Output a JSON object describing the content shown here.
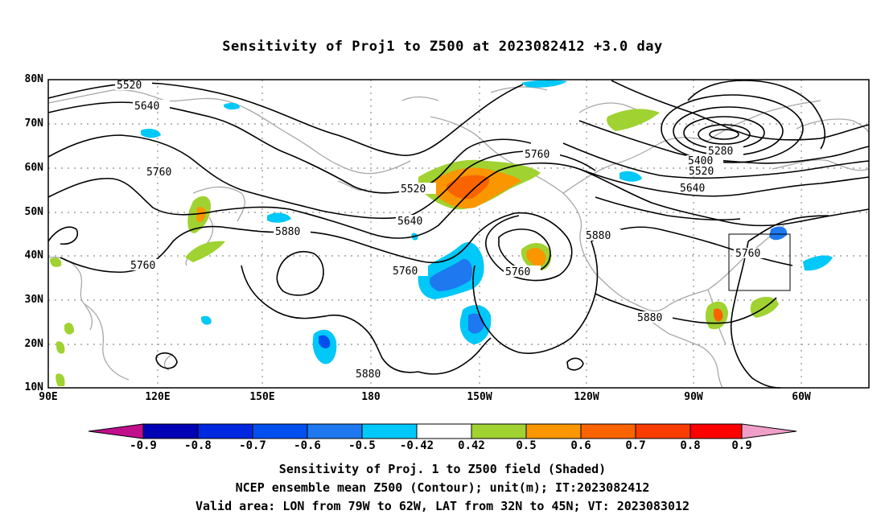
{
  "title": "Sensitivity of Proj1 to Z500 at 2023082412 +3.0 day",
  "lat_labels": [
    "80N",
    "70N",
    "60N",
    "50N",
    "40N",
    "30N",
    "20N",
    "10N"
  ],
  "lon_labels": [
    "90E",
    "120E",
    "150E",
    "180",
    "150W",
    "120W",
    "90W",
    "60W"
  ],
  "contour_labels": [
    "5520",
    "5640",
    "5760",
    "5760",
    "5880",
    "5520",
    "5640",
    "5760",
    "5760",
    "5760",
    "5880",
    "5880",
    "5880",
    "5280",
    "5400",
    "5520",
    "5640",
    "5760"
  ],
  "colorbar": {
    "labels": [
      "-0.9",
      "-0.8",
      "-0.7",
      "-0.6",
      "-0.5",
      "-0.42",
      "0.42",
      "0.5",
      "0.6",
      "0.7",
      "0.8",
      "0.9"
    ],
    "colors": {
      "low_arrow": "#c0108c",
      "band_1": "#0000b4",
      "band_2": "#0028e0",
      "band_3": "#0050f0",
      "band_4": "#1e78f0",
      "band_5": "#00c8f8",
      "neutral": "#ffffff",
      "band_6": "#a0d232",
      "band_7": "#fa9600",
      "band_8": "#fa6400",
      "band_9": "#fa3c00",
      "band_10": "#ff0000",
      "high_arrow": "#f0a0c8"
    }
  },
  "captions": [
    "Sensitivity of Proj. 1 to Z500 field (Shaded)",
    "NCEP ensemble mean Z500 (Contour); unit(m); IT:2023082412",
    "Valid area: LON from 79W to 62W, LAT from 32N to 45N; VT: 2023083012"
  ],
  "valid_area": {
    "lon_from": "79W",
    "lon_to": "62W",
    "lat_from": "32N",
    "lat_to": "45N"
  },
  "colors": {
    "coast": "#a8a8a8",
    "grid": "#a0a0a0",
    "contour": "#000000",
    "sens_pos_low": "#a0d232",
    "sens_pos_mid": "#fa9600",
    "sens_pos_high": "#fa6400",
    "sens_neg_low": "#00c8f8",
    "sens_neg_mid": "#1e78f0",
    "sens_neg_high": "#0050f0"
  }
}
